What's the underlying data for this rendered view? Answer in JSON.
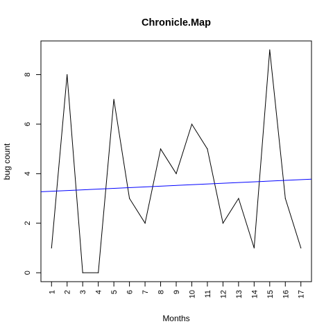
{
  "chart_data": {
    "type": "line",
    "title": "Chronicle.Map",
    "xlabel": "Months",
    "ylabel": "bug count",
    "x": [
      1,
      2,
      3,
      4,
      5,
      6,
      7,
      8,
      9,
      10,
      11,
      12,
      13,
      14,
      15,
      16,
      17
    ],
    "x_tick_labels": [
      "1",
      "2",
      "3",
      "4",
      "5",
      "6",
      "7",
      "8",
      "9",
      "10",
      "11",
      "12",
      "13",
      "14",
      "15",
      "16",
      "17"
    ],
    "y_ticks": [
      0,
      2,
      4,
      6,
      8
    ],
    "y_tick_labels": [
      "0",
      "2",
      "4",
      "6",
      "8"
    ],
    "xlim": [
      0.32,
      17.68
    ],
    "ylim": [
      -0.36,
      9.36
    ],
    "grid": false,
    "series": [
      {
        "values": [
          1,
          8,
          0,
          0,
          7,
          3,
          2,
          5,
          4,
          6,
          5,
          2,
          3,
          1,
          9,
          3,
          1
        ],
        "color": "#000000"
      }
    ],
    "trend_line": {
      "type": "linear",
      "color": "#0000ff",
      "x": [
        0.32,
        17.68
      ],
      "y": [
        3.27,
        3.78
      ]
    }
  }
}
